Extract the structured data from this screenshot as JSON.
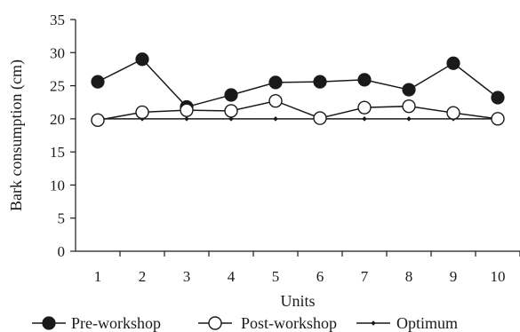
{
  "chart_data": {
    "type": "line",
    "xlabel": "Units",
    "ylabel": "Bark consumption (cm)",
    "x": [
      1,
      2,
      3,
      4,
      5,
      6,
      7,
      8,
      9,
      10
    ],
    "x_ticks": [
      "1",
      "2",
      "3",
      "4",
      "5",
      "6",
      "7",
      "8",
      "9",
      "10"
    ],
    "ylim": [
      0,
      35
    ],
    "y_ticks": [
      "0",
      "5",
      "10",
      "15",
      "20",
      "25",
      "30",
      "35"
    ],
    "grid": false,
    "legend_position": "bottom",
    "series": [
      {
        "name": "Pre-workshop",
        "marker": "filled-circle",
        "color": "#1a1a1a",
        "values": [
          25.6,
          29.0,
          21.8,
          23.6,
          25.5,
          25.6,
          25.9,
          24.4,
          28.4,
          23.2
        ]
      },
      {
        "name": "Post-workshop",
        "marker": "open-circle",
        "color": "#1a1a1a",
        "values": [
          19.8,
          21.0,
          21.3,
          21.2,
          22.7,
          20.1,
          21.7,
          21.9,
          20.9,
          20.0
        ]
      },
      {
        "name": "Optimum",
        "marker": "small-diamond",
        "color": "#1a1a1a",
        "values": [
          20,
          20,
          20,
          20,
          20,
          20,
          20,
          20,
          20,
          20
        ]
      }
    ]
  }
}
